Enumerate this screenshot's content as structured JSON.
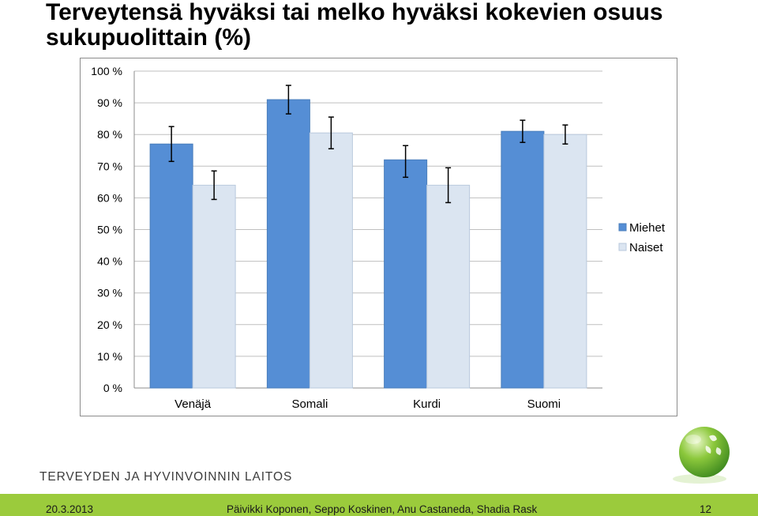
{
  "slide": {
    "title": "Terveytensä hyväksi tai melko hyväksi kokevien osuus sukupuolittain (%)"
  },
  "chart_data": {
    "type": "bar",
    "title": "",
    "xlabel": "",
    "ylabel": "",
    "ylim": [
      0,
      100
    ],
    "y_ticks": [
      "0 %",
      "10 %",
      "20 %",
      "30 %",
      "40 %",
      "50 %",
      "60 %",
      "70 %",
      "80 %",
      "90 %",
      "100 %"
    ],
    "y_tick_values": [
      0,
      10,
      20,
      30,
      40,
      50,
      60,
      70,
      80,
      90,
      100
    ],
    "grid": true,
    "legend_position": "right",
    "categories": [
      "Venäjä",
      "Somali",
      "Kurdi",
      "Suomi"
    ],
    "series": [
      {
        "name": "Miehet",
        "color": "#558ed5",
        "values": [
          77,
          91,
          72,
          81
        ],
        "error_low": [
          71.5,
          86.5,
          66.5,
          77.5
        ],
        "error_high": [
          82.5,
          95.5,
          76.5,
          84.5
        ]
      },
      {
        "name": "Naiset",
        "color": "#dbe5f1",
        "values": [
          64,
          80.5,
          64,
          80
        ],
        "error_low": [
          59.5,
          75.5,
          58.5,
          77
        ],
        "error_high": [
          68.5,
          85.5,
          69.5,
          83
        ]
      }
    ]
  },
  "branding": {
    "organization": "TERVEYDEN JA HYVINVOINNIN LAITOS",
    "logo_icon": "clover-sphere-icon"
  },
  "footer": {
    "date": "20.3.2013",
    "authors": "Päivikki Koponen, Seppo Koskinen, Anu Castaneda, Shadia Rask",
    "page_number": "12",
    "color": "#9bcb3c"
  }
}
